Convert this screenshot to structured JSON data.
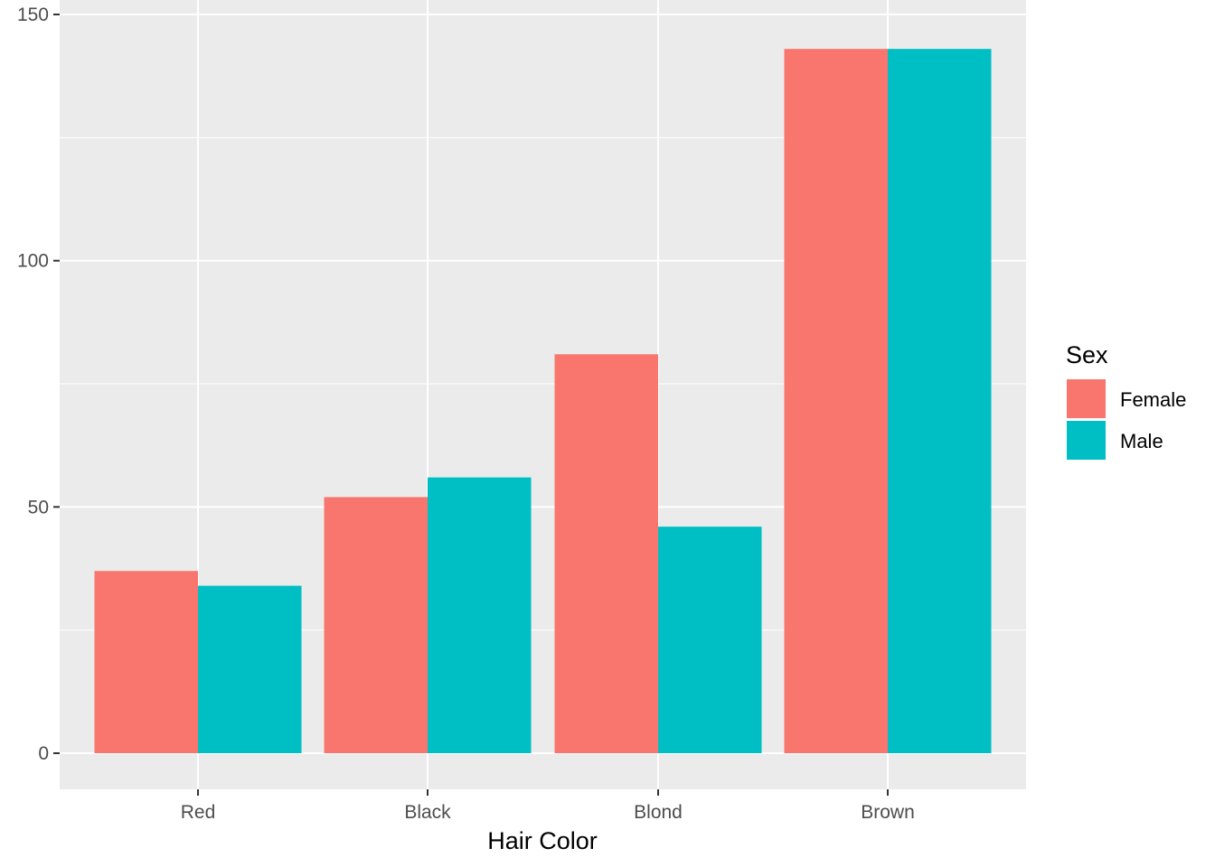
{
  "chart_data": {
    "type": "bar",
    "title": "",
    "xlabel": "Hair Color",
    "ylabel": "",
    "categories": [
      "Red",
      "Black",
      "Blond",
      "Brown"
    ],
    "series": [
      {
        "name": "Female",
        "values": [
          37,
          52,
          81,
          143
        ],
        "color": "#F8766D"
      },
      {
        "name": "Male",
        "values": [
          34,
          56,
          46,
          143
        ],
        "color": "#00BFC4"
      }
    ],
    "ylim": [
      -7,
      150
    ],
    "yticks": [
      0,
      50,
      100,
      150
    ],
    "grid": true,
    "panel_background": "#EBEBEB",
    "legend": {
      "title": "Sex",
      "placement": "right",
      "entries": [
        "Female",
        "Male"
      ]
    }
  }
}
